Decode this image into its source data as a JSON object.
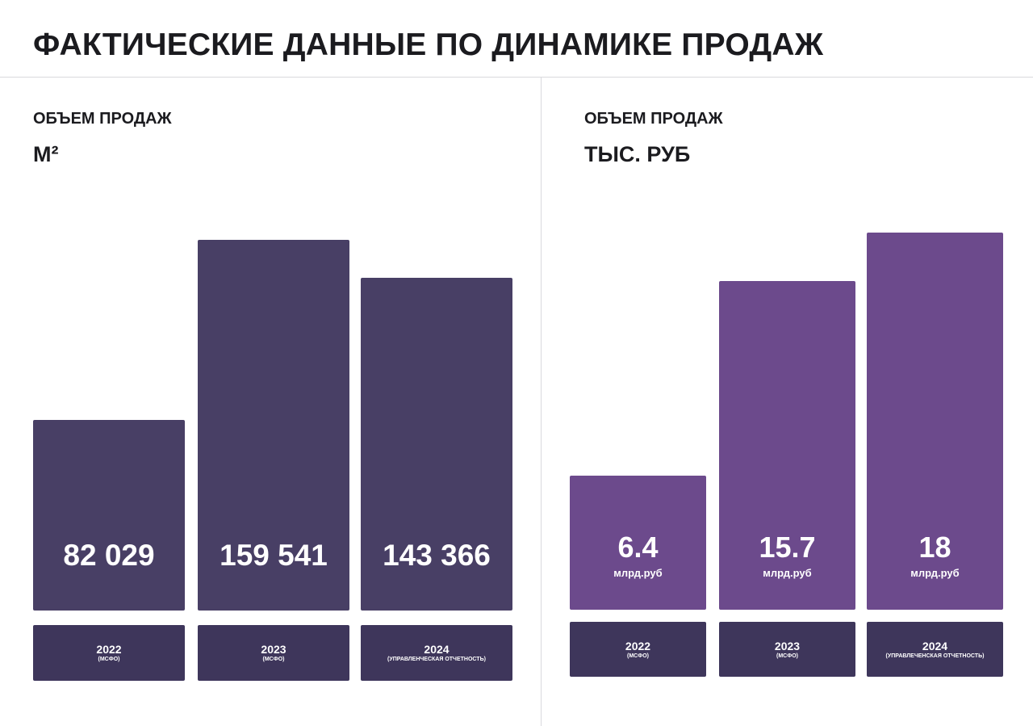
{
  "header": {
    "title": "ФАКТИЧЕСКИЕ ДАННЫЕ ПО ДИНАМИКЕ ПРОДАЖ"
  },
  "colors": {
    "left_bar": "#483f65",
    "right_bar": "#6c4a8c",
    "label_box": "#3e365b"
  },
  "chart_data": [
    {
      "type": "bar",
      "title": "ОБЪЕМ ПРОДАЖ",
      "subtitle": "М²",
      "categories": [
        {
          "year": "2022",
          "note": "(МСФО)"
        },
        {
          "year": "2023",
          "note": "(МСФО)"
        },
        {
          "year": "2024",
          "note": "(УПРАВЛЕНЧЕСКАЯ ОТЧЕТНОСТЬ)"
        }
      ],
      "values": [
        82029,
        159541,
        143366
      ],
      "value_labels": [
        "82 029",
        "159 541",
        "143 366"
      ],
      "ylim": [
        0,
        159541
      ]
    },
    {
      "type": "bar",
      "title": "ОБЪЕМ ПРОДАЖ",
      "subtitle": "ТЫС. РУБ",
      "categories": [
        {
          "year": "2022",
          "note": "(МСФО)"
        },
        {
          "year": "2023",
          "note": "(МСФО)"
        },
        {
          "year": "2024",
          "note": "(УПРАВЛЕЧЕНСКАЯ ОТЧЕТНОСТЬ)"
        }
      ],
      "values": [
        6.4,
        15.7,
        18
      ],
      "value_labels": [
        "6.4",
        "15.7",
        "18"
      ],
      "value_unit": "млрд.руб",
      "ylim": [
        0,
        18
      ]
    }
  ]
}
